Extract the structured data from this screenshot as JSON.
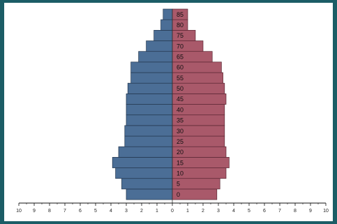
{
  "chart_data": {
    "type": "bar",
    "orientation": "horizontal",
    "layout": "population-pyramid",
    "title": "",
    "xlabel": "",
    "ylabel": "",
    "categories": [
      "0",
      "5",
      "10",
      "15",
      "20",
      "25",
      "30",
      "35",
      "40",
      "45",
      "50",
      "55",
      "60",
      "65",
      "70",
      "75",
      "80",
      "85"
    ],
    "series": [
      {
        "color": "#4b6e96",
        "side": "left",
        "values": [
          3.0,
          3.3,
          3.7,
          3.9,
          3.5,
          3.1,
          3.1,
          3.0,
          3.0,
          3.0,
          2.9,
          2.7,
          2.7,
          2.2,
          1.7,
          1.2,
          0.75,
          0.6
        ]
      },
      {
        "color": "#a9596a",
        "side": "right",
        "values": [
          2.9,
          3.1,
          3.5,
          3.7,
          3.5,
          3.4,
          3.4,
          3.4,
          3.4,
          3.5,
          3.4,
          3.3,
          3.2,
          2.6,
          2.0,
          1.5,
          1.0,
          1.0
        ]
      }
    ],
    "xlim": [
      -10,
      10
    ],
    "xticks": [
      "10",
      "9",
      "8",
      "7",
      "6",
      "5",
      "4",
      "3",
      "2",
      "1",
      "0",
      "1",
      "2",
      "3",
      "4",
      "5",
      "6",
      "7",
      "8",
      "9",
      "10"
    ],
    "grid": false,
    "legend": "none"
  }
}
